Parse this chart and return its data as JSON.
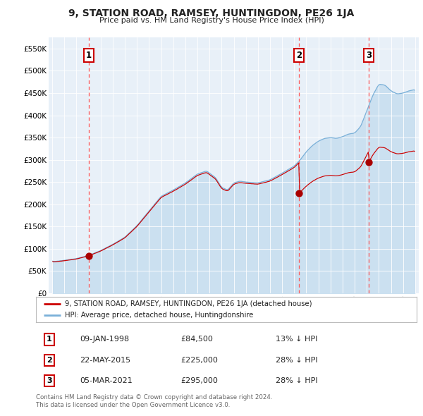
{
  "title": "9, STATION ROAD, RAMSEY, HUNTINGDON, PE26 1JA",
  "subtitle": "Price paid vs. HM Land Registry's House Price Index (HPI)",
  "hpi_color": "#7ab0d8",
  "hpi_fill_color": "#c8dff0",
  "price_color": "#cc0000",
  "sale_marker_color": "#aa0000",
  "vline_color": "#ff5555",
  "sales": [
    {
      "label": "1",
      "date": "09-JAN-1998",
      "price": 84500,
      "pct": "13% ↓ HPI",
      "x": 1998.03
    },
    {
      "label": "2",
      "date": "22-MAY-2015",
      "price": 225000,
      "pct": "28% ↓ HPI",
      "x": 2015.39
    },
    {
      "label": "3",
      "date": "05-MAR-2021",
      "price": 295000,
      "pct": "28% ↓ HPI",
      "x": 2021.17
    }
  ],
  "ylim": [
    0,
    575000
  ],
  "xlim": [
    1994.7,
    2025.3
  ],
  "yticks": [
    0,
    50000,
    100000,
    150000,
    200000,
    250000,
    300000,
    350000,
    400000,
    450000,
    500000,
    550000
  ],
  "ytick_labels": [
    "£0",
    "£50K",
    "£100K",
    "£150K",
    "£200K",
    "£250K",
    "£300K",
    "£350K",
    "£400K",
    "£450K",
    "£500K",
    "£550K"
  ],
  "legend_label_price": "9, STATION ROAD, RAMSEY, HUNTINGDON, PE26 1JA (detached house)",
  "legend_label_hpi": "HPI: Average price, detached house, Huntingdonshire",
  "footer1": "Contains HM Land Registry data © Crown copyright and database right 2024.",
  "footer2": "This data is licensed under the Open Government Licence v3.0.",
  "plot_bg": "#e8f0f8",
  "grid_color": "#ffffff"
}
